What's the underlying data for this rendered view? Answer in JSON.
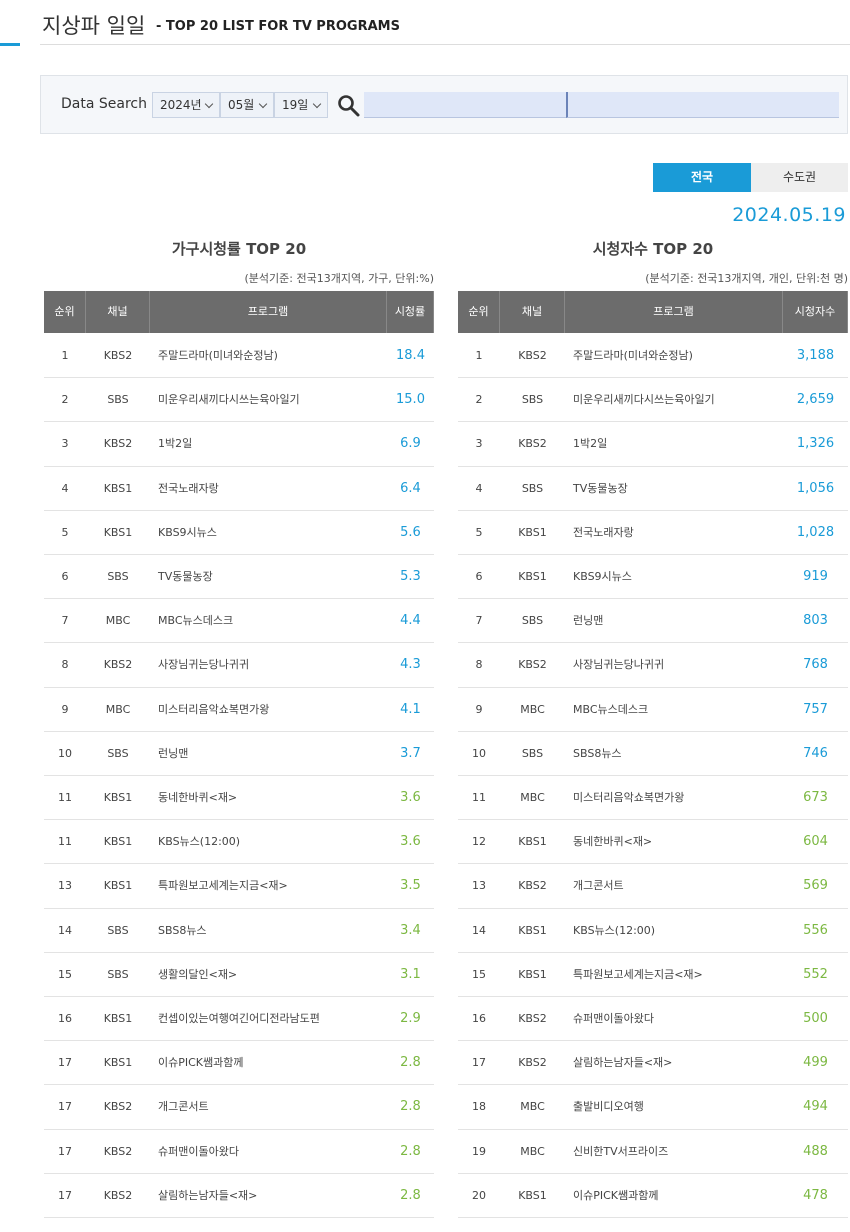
{
  "header": {
    "title": "지상파 일일",
    "subtitle": "- TOP 20 LIST FOR TV PROGRAMS"
  },
  "search": {
    "label": "Data Search",
    "year": "2024년",
    "month": "05월",
    "day": "19일"
  },
  "tabs": [
    "전국",
    "수도권"
  ],
  "date": "2024.05.19",
  "tables": [
    {
      "title": "가구시청률 TOP 20",
      "note": "(분석기준: 전국13개지역, 가구, 단위:%)",
      "columns": [
        "순위",
        "채널",
        "프로그램",
        "시청률"
      ],
      "rows": [
        [
          "1",
          "KBS2",
          "주말드라마(미녀와순정남)",
          "18.4"
        ],
        [
          "2",
          "SBS",
          "미운우리새끼다시쓰는육아일기",
          "15.0"
        ],
        [
          "3",
          "KBS2",
          "1박2일",
          "6.9"
        ],
        [
          "4",
          "KBS1",
          "전국노래자랑",
          "6.4"
        ],
        [
          "5",
          "KBS1",
          "KBS9시뉴스",
          "5.6"
        ],
        [
          "6",
          "SBS",
          "TV동물농장",
          "5.3"
        ],
        [
          "7",
          "MBC",
          "MBC뉴스데스크",
          "4.4"
        ],
        [
          "8",
          "KBS2",
          "사장님귀는당나귀귀",
          "4.3"
        ],
        [
          "9",
          "MBC",
          "미스터리음악쇼복면가왕",
          "4.1"
        ],
        [
          "10",
          "SBS",
          "런닝맨",
          "3.7"
        ],
        [
          "11",
          "KBS1",
          "동네한바퀴<재>",
          "3.6"
        ],
        [
          "11",
          "KBS1",
          "KBS뉴스(12:00)",
          "3.6"
        ],
        [
          "13",
          "KBS1",
          "특파원보고세계는지금<재>",
          "3.5"
        ],
        [
          "14",
          "SBS",
          "SBS8뉴스",
          "3.4"
        ],
        [
          "15",
          "SBS",
          "생활의달인<재>",
          "3.1"
        ],
        [
          "16",
          "KBS1",
          "컨셉이있는여행여긴어디전라남도편",
          "2.9"
        ],
        [
          "17",
          "KBS1",
          "이슈PICK쌤과함께",
          "2.8"
        ],
        [
          "17",
          "KBS2",
          "개그콘서트",
          "2.8"
        ],
        [
          "17",
          "KBS2",
          "슈퍼맨이돌아왔다",
          "2.8"
        ],
        [
          "17",
          "KBS2",
          "살림하는남자들<재>",
          "2.8"
        ]
      ]
    },
    {
      "title": "시청자수 TOP 20",
      "note": "(분석기준: 전국13개지역, 개인, 단위:천 명)",
      "columns": [
        "순위",
        "채널",
        "프로그램",
        "시청자수"
      ],
      "rows": [
        [
          "1",
          "KBS2",
          "주말드라마(미녀와순정남)",
          "3,188"
        ],
        [
          "2",
          "SBS",
          "미운우리새끼다시쓰는육아일기",
          "2,659"
        ],
        [
          "3",
          "KBS2",
          "1박2일",
          "1,326"
        ],
        [
          "4",
          "SBS",
          "TV동물농장",
          "1,056"
        ],
        [
          "5",
          "KBS1",
          "전국노래자랑",
          "1,028"
        ],
        [
          "6",
          "KBS1",
          "KBS9시뉴스",
          "919"
        ],
        [
          "7",
          "SBS",
          "런닝맨",
          "803"
        ],
        [
          "8",
          "KBS2",
          "사장님귀는당나귀귀",
          "768"
        ],
        [
          "9",
          "MBC",
          "MBC뉴스데스크",
          "757"
        ],
        [
          "10",
          "SBS",
          "SBS8뉴스",
          "746"
        ],
        [
          "11",
          "MBC",
          "미스터리음악쇼복면가왕",
          "673"
        ],
        [
          "12",
          "KBS1",
          "동네한바퀴<재>",
          "604"
        ],
        [
          "13",
          "KBS2",
          "개그콘서트",
          "569"
        ],
        [
          "14",
          "KBS1",
          "KBS뉴스(12:00)",
          "556"
        ],
        [
          "15",
          "KBS1",
          "특파원보고세계는지금<재>",
          "552"
        ],
        [
          "16",
          "KBS2",
          "슈퍼맨이돌아왔다",
          "500"
        ],
        [
          "17",
          "KBS2",
          "살림하는남자들<재>",
          "499"
        ],
        [
          "18",
          "MBC",
          "출발비디오여행",
          "494"
        ],
        [
          "19",
          "MBC",
          "신비한TV서프라이즈",
          "488"
        ],
        [
          "20",
          "KBS1",
          "이슈PICK쌤과함께",
          "478"
        ]
      ]
    }
  ]
}
